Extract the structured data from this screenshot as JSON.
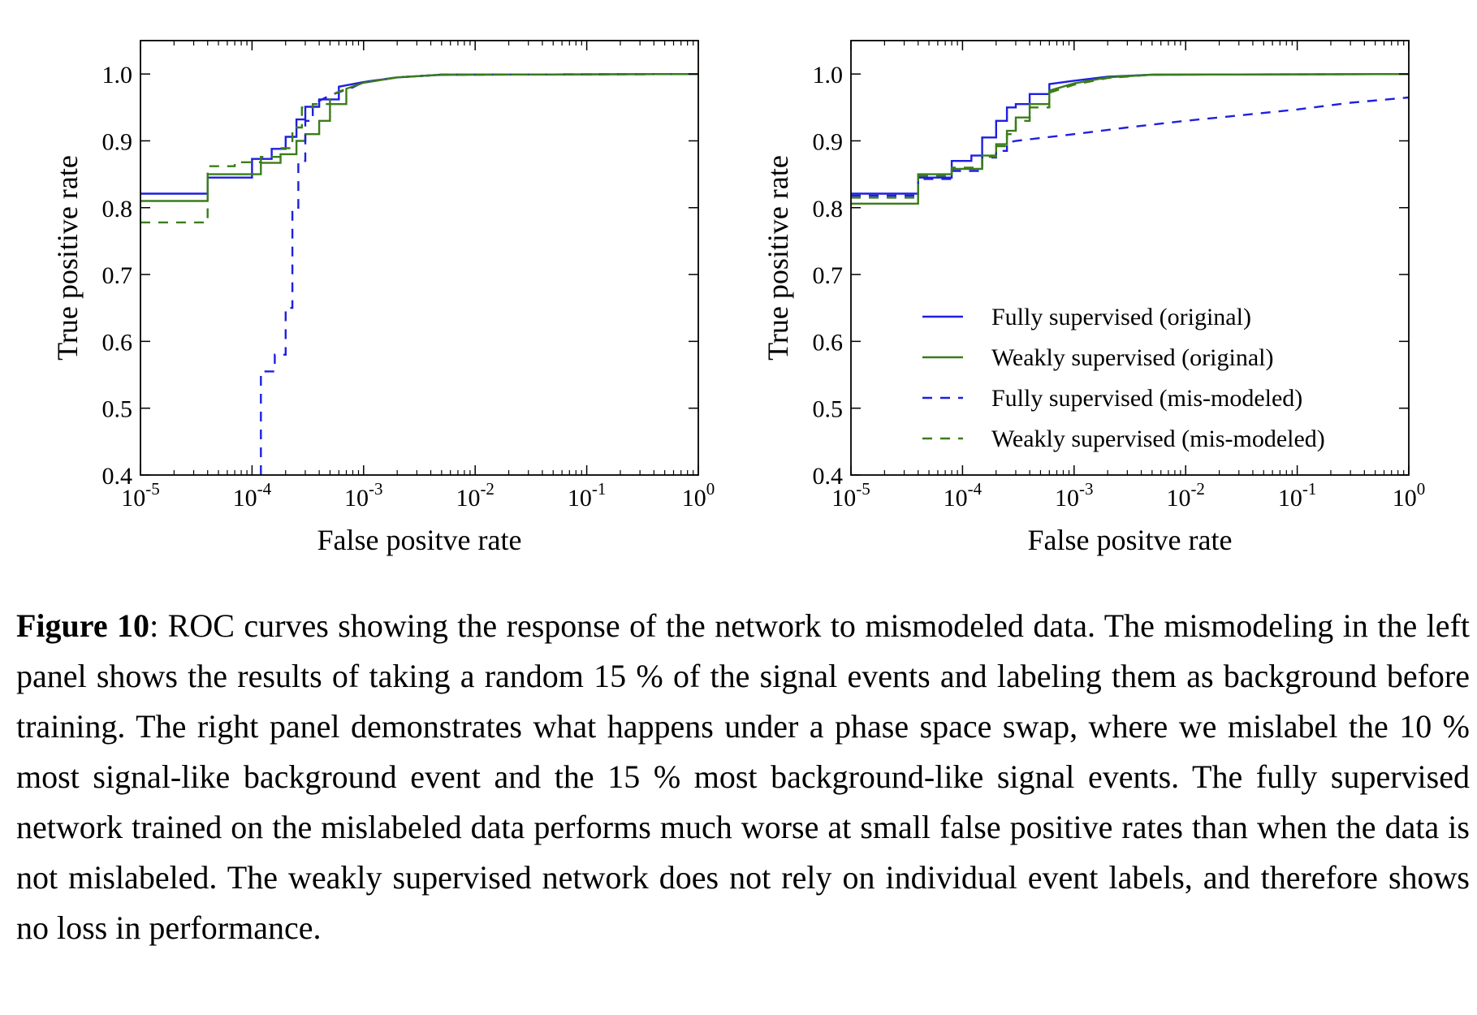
{
  "figure": {
    "panels": [
      "left",
      "right"
    ]
  },
  "chart_data": [
    {
      "type": "line",
      "panel": "left",
      "xlabel": "False positve rate",
      "ylabel": "True positive rate",
      "x_scale": "log",
      "xlim": [
        1e-05,
        1
      ],
      "ylim": [
        0.4,
        1.05
      ],
      "x_ticks": [
        1e-05,
        0.0001,
        0.001,
        0.01,
        0.1,
        1
      ],
      "x_tick_labels": [
        {
          "base": "10",
          "exp": "-5"
        },
        {
          "base": "10",
          "exp": "-4"
        },
        {
          "base": "10",
          "exp": "-3"
        },
        {
          "base": "10",
          "exp": "-2"
        },
        {
          "base": "10",
          "exp": "-1"
        },
        {
          "base": "10",
          "exp": "0"
        }
      ],
      "y_ticks": [
        "0.4",
        "0.5",
        "0.6",
        "0.7",
        "0.8",
        "0.9",
        "1.0"
      ],
      "grid": false,
      "legend": "none",
      "series": [
        {
          "name": "Fully supervised (original)",
          "color": "#1f1fe0",
          "dash": "solid",
          "x": [
            1e-05,
            4e-05,
            4e-05,
            0.0001,
            0.0001,
            0.00015,
            0.00015,
            0.0002,
            0.0002,
            0.00025,
            0.00025,
            0.0003,
            0.0003,
            0.0004,
            0.0004,
            0.0006,
            0.0006,
            0.001,
            0.002,
            0.005,
            1
          ],
          "y": [
            0.821,
            0.821,
            0.845,
            0.845,
            0.873,
            0.873,
            0.888,
            0.888,
            0.906,
            0.906,
            0.932,
            0.932,
            0.951,
            0.951,
            0.962,
            0.962,
            0.981,
            0.988,
            0.995,
            0.999,
            1.0
          ]
        },
        {
          "name": "Weakly supervised (original)",
          "color": "#3a7d1a",
          "dash": "solid",
          "x": [
            1e-05,
            4e-05,
            4e-05,
            0.00012,
            0.00012,
            0.00018,
            0.00018,
            0.00025,
            0.00025,
            0.0003,
            0.0003,
            0.0004,
            0.0004,
            0.0005,
            0.0005,
            0.0007,
            0.0007,
            0.001,
            0.002,
            0.005,
            1
          ],
          "y": [
            0.81,
            0.81,
            0.85,
            0.85,
            0.867,
            0.867,
            0.88,
            0.88,
            0.9,
            0.9,
            0.91,
            0.91,
            0.93,
            0.93,
            0.955,
            0.955,
            0.978,
            0.987,
            0.995,
            0.999,
            1.0
          ]
        },
        {
          "name": "Fully supervised (mis-modeled)",
          "color": "#1f1fe0",
          "dash": "dashed",
          "x": [
            0.00012,
            0.00012,
            0.00016,
            0.00016,
            0.0002,
            0.0002,
            0.00023,
            0.00023,
            0.00026,
            0.00026,
            0.0003,
            0.0003,
            0.00035,
            0.00035,
            0.0005,
            0.0008,
            0.001,
            0.002,
            0.005,
            1
          ],
          "y": [
            0.4,
            0.555,
            0.555,
            0.58,
            0.58,
            0.65,
            0.65,
            0.8,
            0.8,
            0.87,
            0.87,
            0.93,
            0.93,
            0.955,
            0.968,
            0.98,
            0.988,
            0.995,
            0.999,
            1.0
          ]
        },
        {
          "name": "Weakly supervised (mis-modeled)",
          "color": "#3a7d1a",
          "dash": "dashed",
          "x": [
            1e-05,
            4e-05,
            4e-05,
            7e-05,
            7e-05,
            0.00012,
            0.00012,
            0.00018,
            0.00018,
            0.00023,
            0.00023,
            0.00028,
            0.00028,
            0.00035,
            0.00035,
            0.0005,
            0.0005,
            0.0007,
            0.001,
            0.002,
            0.005,
            1
          ],
          "y": [
            0.778,
            0.778,
            0.862,
            0.862,
            0.868,
            0.868,
            0.876,
            0.876,
            0.889,
            0.889,
            0.92,
            0.92,
            0.95,
            0.95,
            0.955,
            0.955,
            0.968,
            0.978,
            0.987,
            0.995,
            0.999,
            1.0
          ]
        }
      ]
    },
    {
      "type": "line",
      "panel": "right",
      "xlabel": "False positve rate",
      "ylabel": "True positive rate",
      "x_scale": "log",
      "xlim": [
        1e-05,
        1
      ],
      "ylim": [
        0.4,
        1.05
      ],
      "x_ticks": [
        1e-05,
        0.0001,
        0.001,
        0.01,
        0.1,
        1
      ],
      "x_tick_labels": [
        {
          "base": "10",
          "exp": "-5"
        },
        {
          "base": "10",
          "exp": "-4"
        },
        {
          "base": "10",
          "exp": "-3"
        },
        {
          "base": "10",
          "exp": "-2"
        },
        {
          "base": "10",
          "exp": "-1"
        },
        {
          "base": "10",
          "exp": "0"
        }
      ],
      "y_ticks": [
        "0.4",
        "0.5",
        "0.6",
        "0.7",
        "0.8",
        "0.9",
        "1.0"
      ],
      "grid": false,
      "legend": "lower-right",
      "series": [
        {
          "name": "Fully supervised (original)",
          "color": "#1f1fe0",
          "dash": "solid",
          "x": [
            1e-05,
            4e-05,
            4e-05,
            8e-05,
            8e-05,
            0.00012,
            0.00012,
            0.00015,
            0.00015,
            0.0002,
            0.0002,
            0.00025,
            0.00025,
            0.0003,
            0.0003,
            0.0004,
            0.0004,
            0.0006,
            0.0006,
            0.001,
            0.002,
            0.005,
            1
          ],
          "y": [
            0.821,
            0.821,
            0.845,
            0.845,
            0.87,
            0.87,
            0.878,
            0.878,
            0.905,
            0.905,
            0.93,
            0.93,
            0.95,
            0.95,
            0.955,
            0.955,
            0.97,
            0.97,
            0.985,
            0.99,
            0.996,
            0.999,
            1.0
          ]
        },
        {
          "name": "Weakly supervised (original)",
          "color": "#3a7d1a",
          "dash": "solid",
          "x": [
            1e-05,
            4e-05,
            4e-05,
            8e-05,
            8e-05,
            0.00015,
            0.00015,
            0.0002,
            0.0002,
            0.00025,
            0.00025,
            0.0003,
            0.0003,
            0.0004,
            0.0004,
            0.0006,
            0.0006,
            0.001,
            0.002,
            0.005,
            1
          ],
          "y": [
            0.806,
            0.806,
            0.85,
            0.85,
            0.858,
            0.858,
            0.878,
            0.878,
            0.895,
            0.895,
            0.915,
            0.915,
            0.935,
            0.935,
            0.955,
            0.955,
            0.975,
            0.986,
            0.995,
            0.999,
            1.0
          ]
        },
        {
          "name": "Fully supervised (mis-modeled)",
          "color": "#1f1fe0",
          "dash": "dashed",
          "x": [
            1e-05,
            4e-05,
            4e-05,
            8e-05,
            8e-05,
            0.00015,
            0.00015,
            0.0002,
            0.0002,
            0.00025,
            0.00025,
            0.0003,
            0.001,
            0.003,
            0.01,
            0.03,
            0.1,
            0.3,
            1
          ],
          "y": [
            0.818,
            0.818,
            0.843,
            0.843,
            0.855,
            0.855,
            0.875,
            0.875,
            0.885,
            0.885,
            0.897,
            0.9,
            0.91,
            0.92,
            0.93,
            0.938,
            0.947,
            0.957,
            0.965
          ]
        },
        {
          "name": "Weakly supervised (mis-modeled)",
          "color": "#3a7d1a",
          "dash": "dashed",
          "x": [
            1e-05,
            4e-05,
            4e-05,
            8e-05,
            8e-05,
            0.00015,
            0.00015,
            0.0002,
            0.0002,
            0.00025,
            0.00025,
            0.0003,
            0.0003,
            0.0004,
            0.0004,
            0.0006,
            0.0006,
            0.001,
            0.002,
            0.005,
            1
          ],
          "y": [
            0.815,
            0.815,
            0.848,
            0.848,
            0.86,
            0.86,
            0.876,
            0.876,
            0.892,
            0.892,
            0.91,
            0.91,
            0.93,
            0.93,
            0.95,
            0.95,
            0.972,
            0.984,
            0.994,
            0.999,
            1.0
          ]
        }
      ],
      "legend_entries": [
        {
          "label": "Fully supervised (original)",
          "color": "#1f1fe0",
          "dash": "solid"
        },
        {
          "label": "Weakly supervised (original)",
          "color": "#3a7d1a",
          "dash": "solid"
        },
        {
          "label": "Fully supervised (mis-modeled)",
          "color": "#1f1fe0",
          "dash": "dashed"
        },
        {
          "label": "Weakly supervised (mis-modeled)",
          "color": "#3a7d1a",
          "dash": "dashed"
        }
      ]
    }
  ],
  "caption": {
    "label": "Figure 10",
    "text": ": ROC curves showing the response of the network to mismodeled data. The mismodeling in the left panel shows the results of taking a random 15 % of the signal events and labeling them as background before training. The right panel demonstrates what happens under a phase space swap, where we mislabel the 10 % most signal-like background event and the 15 % most background-like signal events. The fully supervised network trained on the mislabeled data performs much worse at small false positive rates than when the data is not mislabeled. The weakly supervised network does not rely on individual event labels, and therefore shows no loss in performance."
  }
}
